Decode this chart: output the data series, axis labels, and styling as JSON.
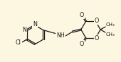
{
  "bg_color": "#fdf6e0",
  "bond_color": "#1a1a1a",
  "bond_lw": 0.9,
  "font_size": 5.8,
  "fig_w": 1.7,
  "fig_h": 0.88,
  "dpi": 100,
  "xlim": [
    0,
    10
  ],
  "ylim": [
    0,
    5.2
  ]
}
